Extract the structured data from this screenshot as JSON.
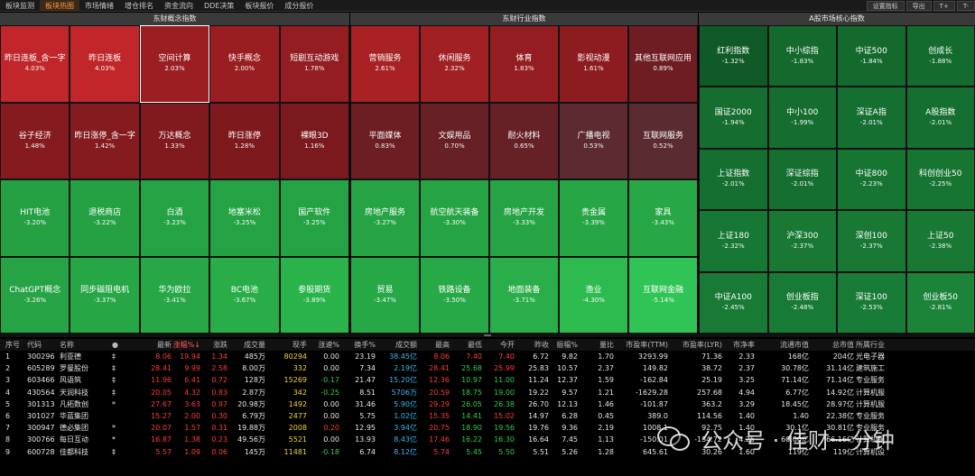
{
  "topbar": {
    "tabs": [
      "板块监测",
      "板块热图",
      "市场情绪",
      "增仓排名",
      "资金流向",
      "DDE决策",
      "板块报价",
      "成分报价"
    ],
    "active_index": 1,
    "buttons": [
      "设置指标",
      "导出",
      "T+",
      "T-"
    ]
  },
  "panels": [
    {
      "title": "东财概念指数",
      "cells": [
        {
          "name": "昨日连板_含一字",
          "pct": "4.03%",
          "color": "#c0262a"
        },
        {
          "name": "昨日连板",
          "pct": "4.03%",
          "color": "#c0262a"
        },
        {
          "name": "空间计算",
          "pct": "2.03%",
          "color": "#9a1e22"
        },
        {
          "name": "快手概念",
          "pct": "2.00%",
          "color": "#991e22"
        },
        {
          "name": "短剧互动游戏",
          "pct": "1.78%",
          "color": "#931d21"
        },
        {
          "name": "谷子经济",
          "pct": "1.48%",
          "color": "#861b1f"
        },
        {
          "name": "昨日涨停_含一字",
          "pct": "1.42%",
          "color": "#841b1f"
        },
        {
          "name": "万达概念",
          "pct": "1.33%",
          "color": "#801a1e"
        },
        {
          "name": "昨日涨停",
          "pct": "1.28%",
          "color": "#7e1a1e"
        },
        {
          "name": "裸眼3D",
          "pct": "1.16%",
          "color": "#7a1a1e"
        },
        {
          "name": "HIT电池",
          "pct": "-3.20%",
          "color": "#25a144"
        },
        {
          "name": "退税商店",
          "pct": "-3.22%",
          "color": "#25a144"
        },
        {
          "name": "白酒",
          "pct": "-3.23%",
          "color": "#25a244"
        },
        {
          "name": "地塞米松",
          "pct": "-3.25%",
          "color": "#25a244"
        },
        {
          "name": "国产软件",
          "pct": "-3.25%",
          "color": "#25a244"
        },
        {
          "name": "ChatGPT概念",
          "pct": "-3.26%",
          "color": "#26a345"
        },
        {
          "name": "同步磁阻电机",
          "pct": "-3.37%",
          "color": "#27a646"
        },
        {
          "name": "华为欧拉",
          "pct": "-3.41%",
          "color": "#27a746"
        },
        {
          "name": "BC电池",
          "pct": "-3.67%",
          "color": "#29ad49"
        },
        {
          "name": "参股期货",
          "pct": "-3.89%",
          "color": "#2ab34b"
        }
      ]
    },
    {
      "title": "东财行业指数",
      "cells": [
        {
          "name": "营销服务",
          "pct": "2.61%",
          "color": "#a72125"
        },
        {
          "name": "休闲服务",
          "pct": "2.32%",
          "color": "#a02024"
        },
        {
          "name": "体育",
          "pct": "1.83%",
          "color": "#941d21"
        },
        {
          "name": "影视动漫",
          "pct": "1.61%",
          "color": "#8c1c20"
        },
        {
          "name": "其他互联网应用",
          "pct": "0.89%",
          "color": "#6e1d22"
        },
        {
          "name": "平面媒体",
          "pct": "0.83%",
          "color": "#6c1e23"
        },
        {
          "name": "文娱用品",
          "pct": "0.70%",
          "color": "#672025"
        },
        {
          "name": "耐火材料",
          "pct": "0.65%",
          "color": "#652126"
        },
        {
          "name": "广播电视",
          "pct": "0.53%",
          "color": "#5c2a30"
        },
        {
          "name": "互联网服务",
          "pct": "0.52%",
          "color": "#5a2b31"
        },
        {
          "name": "房地产服务",
          "pct": "-3.27%",
          "color": "#26a345"
        },
        {
          "name": "航空航天装备",
          "pct": "-3.30%",
          "color": "#26a445"
        },
        {
          "name": "房地产开发",
          "pct": "-3.33%",
          "color": "#26a445"
        },
        {
          "name": "贵金属",
          "pct": "-3.39%",
          "color": "#27a646"
        },
        {
          "name": "家具",
          "pct": "-3.43%",
          "color": "#27a746"
        },
        {
          "name": "贸易",
          "pct": "-3.47%",
          "color": "#27a846"
        },
        {
          "name": "铁路设备",
          "pct": "-3.50%",
          "color": "#28a947"
        },
        {
          "name": "地面装备",
          "pct": "-3.71%",
          "color": "#29ae49"
        },
        {
          "name": "渔业",
          "pct": "-4.30%",
          "color": "#2dbb4f"
        },
        {
          "name": "互联网金融",
          "pct": "-5.14%",
          "color": "#30c456"
        }
      ]
    },
    {
      "title": "A股市场核心指数",
      "cells": [
        {
          "name": "红利指数",
          "pct": "-1.32%",
          "color": "#0f5a26"
        },
        {
          "name": "中小综指",
          "pct": "-1.83%",
          "color": "#14692d"
        },
        {
          "name": "中证500",
          "pct": "-1.84%",
          "color": "#146a2d"
        },
        {
          "name": "创成长",
          "pct": "-1.88%",
          "color": "#146b2e"
        },
        {
          "name": "国证2000",
          "pct": "-1.94%",
          "color": "#156d2f"
        },
        {
          "name": "中小100",
          "pct": "-1.99%",
          "color": "#156e2f"
        },
        {
          "name": "深证A指",
          "pct": "-2.01%",
          "color": "#156f30"
        },
        {
          "name": "A股指数",
          "pct": "-2.01%",
          "color": "#156f30"
        },
        {
          "name": "上证指数",
          "pct": "-2.01%",
          "color": "#156f30"
        },
        {
          "name": "深证综指",
          "pct": "-2.01%",
          "color": "#156f30"
        },
        {
          "name": "中证800",
          "pct": "-2.23%",
          "color": "#177532"
        },
        {
          "name": "科创创业50",
          "pct": "-2.25%",
          "color": "#177532"
        },
        {
          "name": "上证180",
          "pct": "-2.32%",
          "color": "#177734"
        },
        {
          "name": "沪深300",
          "pct": "-2.37%",
          "color": "#187834"
        },
        {
          "name": "深创100",
          "pct": "-2.37%",
          "color": "#187834"
        },
        {
          "name": "上证50",
          "pct": "-2.38%",
          "color": "#187834"
        },
        {
          "name": "中证A100",
          "pct": "-2.45%",
          "color": "#187a35"
        },
        {
          "name": "创业板指",
          "pct": "-2.48%",
          "color": "#187b35"
        },
        {
          "name": "深证100",
          "pct": "-2.53%",
          "color": "#197c36"
        },
        {
          "name": "创业板50",
          "pct": "-2.81%",
          "color": "#1b8439"
        }
      ]
    }
  ],
  "table": {
    "headers": [
      "序号",
      "代码",
      "名称",
      "●",
      "最新",
      "涨幅%↓",
      "涨跌",
      "成交量",
      "现手",
      "涨速%",
      "换手%",
      "成交额",
      "最高",
      "最低",
      "今开",
      "昨收",
      "振幅%",
      "量比",
      "市盈率(TTM)",
      "市盈率(LYR)",
      "市净率",
      "流通市值",
      "总市值",
      "所属行业"
    ],
    "rows": [
      [
        "1",
        "300296",
        "利亚德",
        "‡",
        "8.06",
        "19.94",
        "1.34",
        "485万",
        "80294",
        "0.00",
        "23.19",
        "38.45亿",
        "8.06",
        "7.40",
        "7.40",
        "6.72",
        "9.82",
        "1.70",
        "3293.99",
        "71.36",
        "2.33",
        "168亿",
        "204亿",
        "光电子器"
      ],
      [
        "2",
        "605289",
        "罗曼股份",
        "‡",
        "28.41",
        "9.99",
        "2.58",
        "8.00万",
        "332",
        "0.00",
        "7.34",
        "2.19亿",
        "28.41",
        "25.68",
        "25.99",
        "25.83",
        "10.57",
        "2.37",
        "149.82",
        "38.72",
        "2.37",
        "30.78亿",
        "31.14亿",
        "建筑施工"
      ],
      [
        "3",
        "603466",
        "风语筑",
        "‡",
        "11.96",
        "6.41",
        "0.72",
        "128万",
        "15269",
        "-0.17",
        "21.47",
        "15.20亿",
        "12.36",
        "10.97",
        "11.00",
        "11.24",
        "12.37",
        "1.59",
        "-162.84",
        "25.19",
        "3.25",
        "71.14亿",
        "71.14亿",
        "专业服务"
      ],
      [
        "4",
        "430564",
        "天润科技",
        "‡",
        "20.05",
        "4.32",
        "0.83",
        "2.87万",
        "342",
        "-0.25",
        "8.51",
        "5706万",
        "20.59",
        "18.75",
        "19.00",
        "19.22",
        "9.57",
        "1.21",
        "-1629.28",
        "257.68",
        "4.94",
        "6.77亿",
        "14.92亿",
        "计算机服"
      ],
      [
        "5",
        "301313",
        "凡拓数创",
        "*",
        "27.67",
        "3.63",
        "0.97",
        "20.98万",
        "1492",
        "0.00",
        "31.46",
        "5.90亿",
        "29.29",
        "26.05",
        "26.38",
        "26.70",
        "12.13",
        "1.46",
        "-101.87",
        "363.2",
        "3.29",
        "18.45亿",
        "28.97亿",
        "计算机服"
      ],
      [
        "6",
        "301027",
        "华蓝集团",
        "",
        "15.27",
        "2.00",
        "0.30",
        "6.79万",
        "2477",
        "0.00",
        "5.75",
        "1.02亿",
        "15.35",
        "14.41",
        "15.02",
        "14.97",
        "6.28",
        "0.45",
        "389.0",
        "114.56",
        "1.40",
        "1.40",
        "22.38亿",
        "专业服务"
      ],
      [
        "7",
        "300947",
        "德必集团",
        "*",
        "20.07",
        "1.57",
        "0.31",
        "19.88万",
        "2008",
        "0.20",
        "12.95",
        "3.94亿",
        "20.75",
        "18.90",
        "19.56",
        "19.76",
        "9.36",
        "2.19",
        "1008.1",
        "92.75",
        "1.40",
        "30.1亿",
        "30.81亿",
        "专业服务"
      ],
      [
        "8",
        "300766",
        "每日互动",
        "*",
        "16.87",
        "1.38",
        "0.23",
        "49.56万",
        "5521",
        "0.00",
        "13.93",
        "8.43亿",
        "17.46",
        "16.22",
        "16.30",
        "16.64",
        "7.45",
        "1.13",
        "-150.01",
        "-134.72",
        "4.25",
        "60.00亿",
        "66.16亿",
        "计算机服"
      ],
      [
        "9",
        "600728",
        "佳都科技",
        "‡",
        "5.57",
        "1.09",
        "0.06",
        "145万",
        "11481",
        "-0.18",
        "6.74",
        "8.12亿",
        "5.74",
        "5.45",
        "5.50",
        "5.51",
        "5.26",
        "1.28",
        "645.61",
        "30.26",
        "1.60",
        "119亿",
        "119亿",
        "计算机设"
      ]
    ]
  },
  "watermark": {
    "text": "公众号 · 佳财一分钟"
  }
}
